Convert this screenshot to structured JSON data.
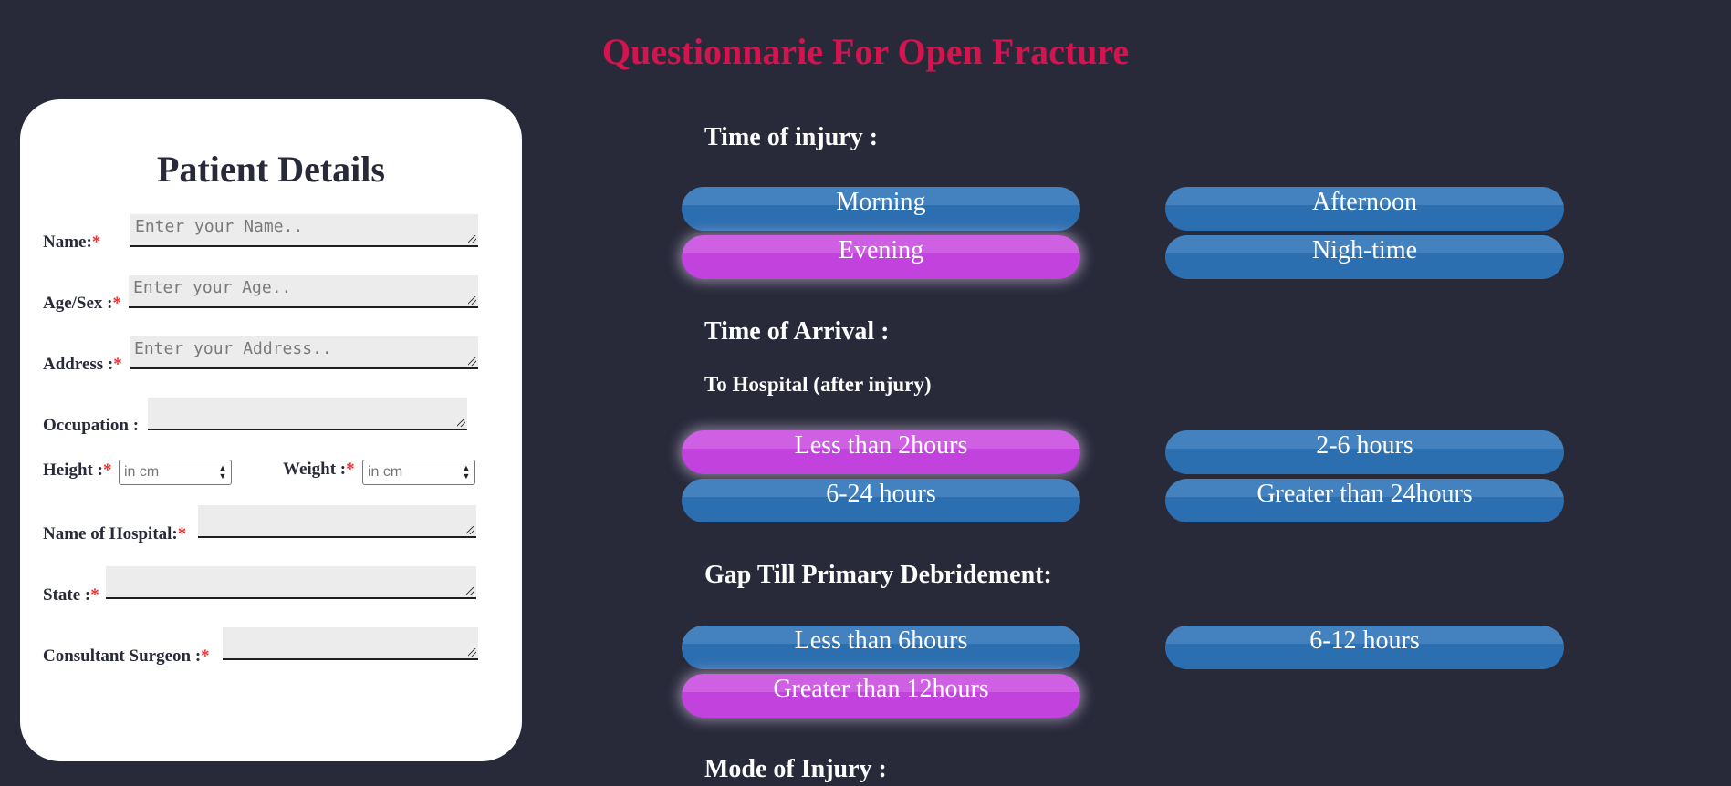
{
  "page_title": "Questionnarie For Open Fracture",
  "patient": {
    "title": "Patient Details",
    "required_mark": "*",
    "name": {
      "label": "Name:",
      "placeholder": "Enter your Name.."
    },
    "age_sex": {
      "label": "Age/Sex :",
      "placeholder": "Enter your Age.."
    },
    "address": {
      "label": "Address :",
      "placeholder": "Enter your Address.."
    },
    "occupation": {
      "label": "Occupation :",
      "placeholder": ""
    },
    "height": {
      "label": "Height :",
      "placeholder": "in cm"
    },
    "weight": {
      "label": "Weight :",
      "placeholder": "in cm"
    },
    "hospital": {
      "label": "Name of Hospital:",
      "placeholder": ""
    },
    "state": {
      "label": "State :",
      "placeholder": ""
    },
    "surgeon": {
      "label": "Consultant Surgeon :",
      "placeholder": ""
    }
  },
  "questions": {
    "time_of_injury": {
      "label": "Time of injury :",
      "options": [
        {
          "label": "Morning",
          "selected": false
        },
        {
          "label": "Afternoon",
          "selected": false
        },
        {
          "label": "Evening",
          "selected": true
        },
        {
          "label": "Nigh-time",
          "selected": false
        }
      ]
    },
    "time_of_arrival": {
      "label": "Time of Arrival :",
      "sublabel": "To Hospital (after injury)",
      "options": [
        {
          "label": "Less than 2hours",
          "selected": true
        },
        {
          "label": "2-6 hours",
          "selected": false
        },
        {
          "label": "6-24 hours",
          "selected": false
        },
        {
          "label": "Greater than 24hours",
          "selected": false
        }
      ]
    },
    "gap_debridement": {
      "label": "Gap Till Primary Debridement:",
      "options": [
        {
          "label": "Less than 6hours",
          "selected": false
        },
        {
          "label": "6-12 hours",
          "selected": false
        },
        {
          "label": "Greater than 12hours",
          "selected": true
        }
      ]
    },
    "mode_of_injury": {
      "label": "Mode of Injury :"
    }
  },
  "colors": {
    "background": "#282a3a",
    "title": "#d4144e",
    "option_blue": "#2c6fb1",
    "option_selected": "#c242de",
    "required": "#e5322f"
  }
}
